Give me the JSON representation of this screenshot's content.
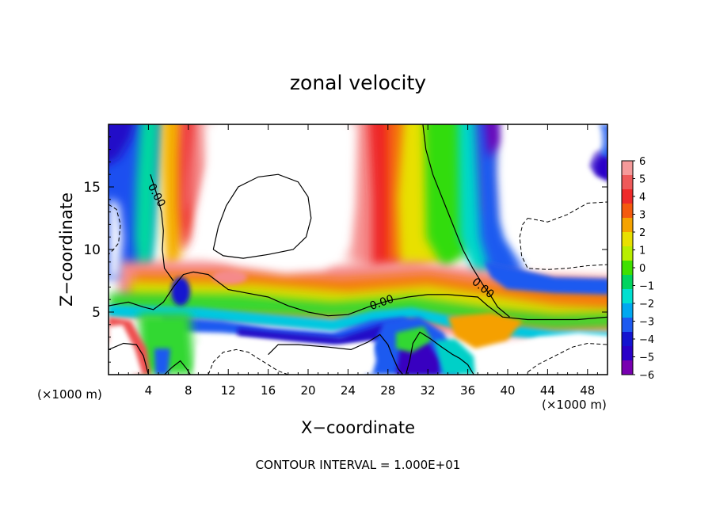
{
  "chart_data": {
    "type": "heatmap",
    "title": "zonal velocity",
    "xlabel": "X−coordinate",
    "ylabel": "Z−coordinate",
    "x_unit_left": "(×1000 m)",
    "x_unit_right": "(×1000 m)",
    "footer": "CONTOUR INTERVAL = 1.000E+01",
    "xlim": [
      0,
      50
    ],
    "ylim": [
      0,
      20
    ],
    "x_ticks": [
      4,
      8,
      12,
      16,
      20,
      24,
      28,
      32,
      36,
      40,
      44,
      48
    ],
    "x_tick_labels": [
      "4",
      "8",
      "12",
      "16",
      "20",
      "24",
      "28",
      "32",
      "36",
      "40",
      "44",
      "48"
    ],
    "y_ticks": [
      5,
      10,
      15
    ],
    "y_tick_labels": [
      "5",
      "10",
      "15"
    ],
    "colorbar": {
      "min": -6,
      "max": 6,
      "tick_labels": [
        "6",
        "5",
        "4",
        "3",
        "2",
        "1",
        "0",
        "−1",
        "−2",
        "−3",
        "−4",
        "−5",
        "−6"
      ],
      "colors": [
        "#f59a9a",
        "#ee5a5a",
        "#ee2a2a",
        "#f45a0e",
        "#f5a300",
        "#e8e000",
        "#b8ee00",
        "#40e000",
        "#00d460",
        "#00e0d0",
        "#00a8f0",
        "#1e5af0",
        "#1414d0",
        "#2a00c8",
        "#7800b0"
      ]
    },
    "contour_labels": [
      {
        "text": "0.00",
        "x": 4.5,
        "y": 14.2
      },
      {
        "text": "0.00",
        "x": 27.5,
        "y": 5.5
      },
      {
        "text": "0.00",
        "x": 37.3,
        "y": 6.7
      }
    ],
    "zero_contours": [
      [
        [
          0,
          5.5
        ],
        [
          2,
          5.8
        ],
        [
          3.5,
          5.4
        ],
        [
          4.5,
          5.2
        ],
        [
          5.5,
          5.8
        ],
        [
          6.5,
          7
        ],
        [
          7.5,
          8
        ],
        [
          8.5,
          8.2
        ],
        [
          10,
          8
        ],
        [
          12,
          6.8
        ],
        [
          14,
          6.5
        ],
        [
          16,
          6.2
        ],
        [
          18,
          5.5
        ],
        [
          20,
          5.0
        ],
        [
          22,
          4.7
        ],
        [
          24,
          4.8
        ],
        [
          26,
          5.4
        ],
        [
          28,
          5.9
        ],
        [
          30,
          6.2
        ],
        [
          32,
          6.4
        ],
        [
          34,
          6.4
        ],
        [
          35.5,
          6.3
        ],
        [
          37,
          6.2
        ],
        [
          38,
          5.5
        ],
        [
          39.5,
          4.6
        ],
        [
          42,
          4.4
        ],
        [
          45,
          4.4
        ],
        [
          47,
          4.4
        ],
        [
          50,
          4.6
        ]
      ],
      [
        [
          4.2,
          16
        ],
        [
          4.8,
          14.5
        ],
        [
          5.3,
          13
        ],
        [
          5.5,
          11.5
        ],
        [
          5.4,
          10
        ],
        [
          5.6,
          8.5
        ],
        [
          6.5,
          7.5
        ]
      ],
      [
        [
          31.5,
          20
        ],
        [
          31.8,
          18
        ],
        [
          32.5,
          16
        ],
        [
          33.5,
          14
        ],
        [
          34.5,
          12
        ],
        [
          35.5,
          10
        ],
        [
          36.5,
          8.5
        ],
        [
          37.5,
          7.2
        ],
        [
          38.3,
          6.3
        ],
        [
          39,
          5.4
        ],
        [
          40.2,
          4.6
        ]
      ],
      [
        [
          10.5,
          10
        ],
        [
          11,
          11.8
        ],
        [
          11.8,
          13.5
        ],
        [
          13,
          15
        ],
        [
          15,
          15.8
        ],
        [
          17,
          16
        ],
        [
          19,
          15.4
        ],
        [
          20,
          14.2
        ],
        [
          20.3,
          12.5
        ],
        [
          19.8,
          11
        ],
        [
          18.5,
          10
        ],
        [
          16,
          9.6
        ],
        [
          13.5,
          9.3
        ],
        [
          11.5,
          9.5
        ],
        [
          10.5,
          10
        ]
      ],
      [
        [
          16,
          1.6
        ],
        [
          17,
          2.4
        ],
        [
          19,
          2.4
        ],
        [
          22,
          2.2
        ],
        [
          24.3,
          2.0
        ],
        [
          26,
          2.6
        ],
        [
          27.2,
          3.2
        ],
        [
          28,
          2.4
        ],
        [
          28.5,
          1.4
        ],
        [
          29,
          0.5
        ],
        [
          29.5,
          0
        ]
      ],
      [
        [
          29.8,
          0
        ],
        [
          30.2,
          1.2
        ],
        [
          30.5,
          2.5
        ],
        [
          31.2,
          3.4
        ],
        [
          32.2,
          2.9
        ],
        [
          33.4,
          2.2
        ],
        [
          34.5,
          1.6
        ],
        [
          35.2,
          1.3
        ],
        [
          36,
          0.8
        ],
        [
          36.6,
          0
        ]
      ],
      [
        [
          0,
          2.0
        ],
        [
          1.5,
          2.5
        ],
        [
          2.8,
          2.4
        ],
        [
          3.5,
          1.5
        ],
        [
          3.8,
          0.6
        ],
        [
          4,
          0
        ]
      ],
      [
        [
          5.6,
          0
        ],
        [
          6.4,
          0.6
        ],
        [
          7.2,
          1.1
        ],
        [
          7.8,
          0.5
        ],
        [
          8.2,
          0
        ]
      ]
    ],
    "negative_contours": [
      [
        [
          42,
          12.5
        ],
        [
          44,
          12.2
        ],
        [
          46,
          12.8
        ],
        [
          48,
          13.7
        ],
        [
          50,
          13.8
        ],
        [
          50,
          8.8
        ],
        [
          48,
          8.7
        ],
        [
          46,
          8.5
        ],
        [
          44,
          8.4
        ],
        [
          42,
          8.5
        ],
        [
          41.4,
          9.5
        ],
        [
          41.2,
          11
        ],
        [
          41.5,
          12
        ],
        [
          42,
          12.5
        ]
      ],
      [
        [
          10,
          0
        ],
        [
          10.5,
          1.0
        ],
        [
          11.5,
          1.8
        ],
        [
          12.8,
          2.0
        ],
        [
          14,
          1.8
        ],
        [
          15,
          1.3
        ],
        [
          16,
          0.8
        ],
        [
          17,
          0.3
        ],
        [
          18,
          0
        ]
      ],
      [
        [
          42,
          0.2
        ],
        [
          43,
          0.8
        ],
        [
          45,
          1.6
        ],
        [
          46.5,
          2.2
        ],
        [
          48,
          2.5
        ],
        [
          50,
          2.4
        ]
      ],
      [
        [
          0,
          13.6
        ],
        [
          0.8,
          13.2
        ],
        [
          1.2,
          12
        ],
        [
          1.0,
          10.5
        ],
        [
          0.5,
          10
        ],
        [
          0,
          9.6
        ]
      ]
    ]
  }
}
